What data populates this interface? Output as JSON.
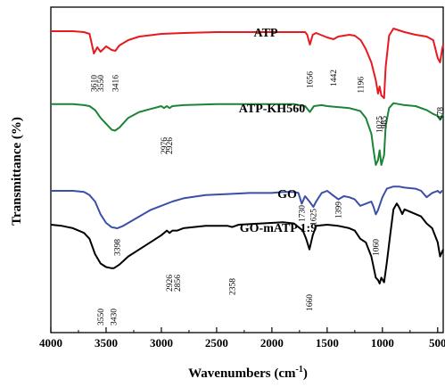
{
  "chart_data": {
    "type": "line",
    "title": "",
    "xlabel": "Wavenumbers (cm",
    "xlabel_sup": "-1",
    "xlabel_end": ")",
    "ylabel": "Transmittance (%)",
    "xlim": [
      4000,
      450
    ],
    "x_reversed": true,
    "y_ticks_shown": false,
    "xticks": [
      4000,
      3500,
      3000,
      2500,
      2000,
      1500,
      1000,
      500
    ],
    "tick_labels": [
      "4000",
      "3500",
      "3000",
      "2500",
      "2000",
      "1500",
      "1000",
      "500"
    ],
    "grid": false,
    "series": [
      {
        "name": "ATP",
        "color": "#e8191f",
        "x": [
          4000,
          3800,
          3700,
          3650,
          3610,
          3580,
          3550,
          3500,
          3450,
          3416,
          3380,
          3300,
          3200,
          3000,
          2800,
          2500,
          2200,
          2000,
          1800,
          1700,
          1680,
          1656,
          1630,
          1600,
          1500,
          1442,
          1400,
          1300,
          1250,
          1196,
          1150,
          1100,
          1060,
          1040,
          1025,
          1010,
          985,
          970,
          940,
          900,
          850,
          800,
          700,
          600,
          540,
          500,
          478,
          460,
          450
        ],
        "y": [
          0.9,
          0.9,
          0.89,
          0.87,
          0.65,
          0.72,
          0.67,
          0.73,
          0.69,
          0.68,
          0.74,
          0.8,
          0.84,
          0.87,
          0.88,
          0.89,
          0.89,
          0.89,
          0.89,
          0.89,
          0.86,
          0.75,
          0.86,
          0.88,
          0.83,
          0.81,
          0.84,
          0.86,
          0.85,
          0.8,
          0.7,
          0.55,
          0.35,
          0.2,
          0.28,
          0.18,
          0.15,
          0.5,
          0.85,
          0.93,
          0.91,
          0.89,
          0.86,
          0.84,
          0.8,
          0.6,
          0.55,
          0.7,
          0.75
        ]
      },
      {
        "name": "ATP-KH560",
        "color": "#1c8436",
        "x": [
          4000,
          3800,
          3700,
          3650,
          3600,
          3550,
          3500,
          3450,
          3420,
          3380,
          3300,
          3200,
          3100,
          3000,
          2976,
          2950,
          2926,
          2900,
          2800,
          2500,
          2200,
          2000,
          1800,
          1700,
          1656,
          1620,
          1550,
          1500,
          1400,
          1300,
          1200,
          1150,
          1100,
          1080,
          1060,
          1040,
          1025,
          1010,
          985,
          970,
          940,
          900,
          850,
          800,
          700,
          600,
          540,
          500,
          478,
          460,
          450
        ],
        "y": [
          0.92,
          0.92,
          0.91,
          0.9,
          0.86,
          0.78,
          0.72,
          0.66,
          0.65,
          0.68,
          0.78,
          0.84,
          0.87,
          0.9,
          0.88,
          0.9,
          0.88,
          0.9,
          0.91,
          0.92,
          0.92,
          0.92,
          0.92,
          0.9,
          0.84,
          0.9,
          0.91,
          0.9,
          0.89,
          0.88,
          0.85,
          0.78,
          0.62,
          0.45,
          0.3,
          0.35,
          0.45,
          0.3,
          0.4,
          0.7,
          0.88,
          0.93,
          0.92,
          0.91,
          0.9,
          0.86,
          0.82,
          0.8,
          0.76,
          0.8,
          0.82
        ]
      },
      {
        "name": "GO",
        "color": "#3b4fa6",
        "x": [
          4000,
          3800,
          3700,
          3650,
          3600,
          3550,
          3500,
          3450,
          3398,
          3350,
          3300,
          3200,
          3100,
          3000,
          2900,
          2800,
          2600,
          2400,
          2200,
          2000,
          1900,
          1800,
          1760,
          1730,
          1700,
          1660,
          1625,
          1600,
          1550,
          1500,
          1450,
          1399,
          1350,
          1300,
          1250,
          1200,
          1150,
          1100,
          1080,
          1060,
          1040,
          1000,
          960,
          900,
          850,
          800,
          700,
          650,
          600,
          550,
          500,
          478,
          460,
          450
        ],
        "y": [
          0.8,
          0.8,
          0.79,
          0.76,
          0.7,
          0.58,
          0.5,
          0.46,
          0.45,
          0.47,
          0.5,
          0.56,
          0.62,
          0.66,
          0.7,
          0.73,
          0.76,
          0.77,
          0.78,
          0.78,
          0.79,
          0.79,
          0.78,
          0.68,
          0.75,
          0.7,
          0.65,
          0.7,
          0.78,
          0.8,
          0.76,
          0.72,
          0.75,
          0.74,
          0.72,
          0.66,
          0.68,
          0.7,
          0.65,
          0.58,
          0.62,
          0.74,
          0.82,
          0.84,
          0.84,
          0.83,
          0.82,
          0.8,
          0.74,
          0.78,
          0.8,
          0.78,
          0.8,
          0.8
        ]
      },
      {
        "name": "GO-mATP 1:9",
        "color": "#000000",
        "x": [
          4000,
          3900,
          3800,
          3700,
          3650,
          3600,
          3550,
          3500,
          3450,
          3430,
          3380,
          3300,
          3200,
          3100,
          3000,
          2950,
          2926,
          2900,
          2856,
          2800,
          2600,
          2400,
          2358,
          2300,
          2100,
          1900,
          1800,
          1720,
          1690,
          1660,
          1630,
          1600,
          1500,
          1400,
          1300,
          1250,
          1200,
          1150,
          1100,
          1060,
          1040,
          1025,
          1010,
          985,
          960,
          930,
          900,
          870,
          850,
          820,
          800,
          750,
          700,
          650,
          600,
          550,
          500,
          478,
          460,
          450
        ],
        "y": [
          0.97,
          0.96,
          0.94,
          0.9,
          0.85,
          0.72,
          0.64,
          0.61,
          0.6,
          0.6,
          0.63,
          0.7,
          0.76,
          0.82,
          0.88,
          0.92,
          0.9,
          0.92,
          0.92,
          0.94,
          0.96,
          0.96,
          0.95,
          0.97,
          0.98,
          0.99,
          0.98,
          0.92,
          0.85,
          0.76,
          0.88,
          0.96,
          0.97,
          0.96,
          0.94,
          0.92,
          0.85,
          0.82,
          0.7,
          0.52,
          0.5,
          0.47,
          0.52,
          0.48,
          0.65,
          0.88,
          1.1,
          1.15,
          1.12,
          1.06,
          1.1,
          1.08,
          1.06,
          1.04,
          0.98,
          0.94,
          0.82,
          0.7,
          0.74,
          0.76
        ]
      }
    ],
    "peak_annotations": [
      {
        "series": "ATP",
        "labels": [
          "3610",
          "3550",
          "3416",
          "1656",
          "1442",
          "1196",
          "1025",
          "985",
          "478"
        ],
        "positions": [
          3610,
          3550,
          3416,
          1656,
          1442,
          1196,
          1025,
          985,
          478
        ]
      },
      {
        "series": "ATP-KH560",
        "labels": [
          "2976",
          "2926"
        ],
        "positions": [
          2976,
          2926
        ]
      },
      {
        "series": "GO",
        "labels": [
          "3398",
          "1730",
          "1625",
          "1399",
          "1060"
        ],
        "positions": [
          3398,
          1730,
          1625,
          1399,
          1060
        ]
      },
      {
        "series": "GO-mATP 1:9",
        "labels": [
          "3550",
          "3430",
          "2926",
          "2856",
          "2358",
          "1660"
        ],
        "positions": [
          3550,
          3430,
          2926,
          2856,
          2358,
          1660
        ]
      }
    ]
  }
}
